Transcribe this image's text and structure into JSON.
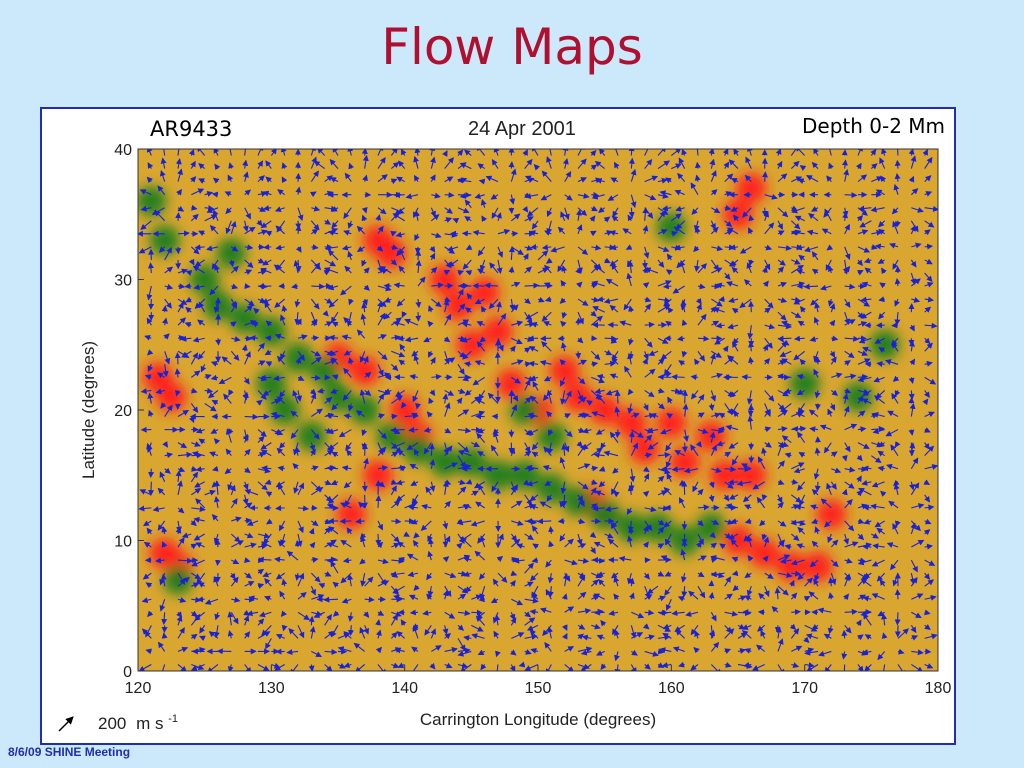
{
  "slide": {
    "title": "Flow Maps",
    "footer": "8/6/09 SHINE Meeting"
  },
  "figure": {
    "region_label": "AR9433",
    "date_label": "24 Apr 2001",
    "depth_label": "Depth 0-2 Mm",
    "scale_value": "200",
    "scale_unit": "m s",
    "scale_exponent": "-1"
  },
  "colors": {
    "background": "#cce8fb",
    "title": "#b01030",
    "frame": "#1f2fb0",
    "field": "#d9a630",
    "flow_vectors": "#1a22d8",
    "positive_region": "#ff2020",
    "negative_region": "#1e7d1e"
  },
  "chart_data": {
    "type": "vector-field",
    "xlabel": "Carrington Longitude (degrees)",
    "ylabel": "Latitude (degrees)",
    "xlim": [
      120,
      180
    ],
    "ylim": [
      0,
      40
    ],
    "xticks": [
      120,
      130,
      140,
      150,
      160,
      170,
      180
    ],
    "yticks": [
      0,
      10,
      20,
      30,
      40
    ],
    "regions": [
      {
        "color": "red",
        "points": [
          [
            121.5,
            22.5
          ],
          [
            122.5,
            21
          ],
          [
            122,
            9
          ],
          [
            123,
            8
          ],
          [
            143,
            30
          ],
          [
            144,
            28
          ],
          [
            146,
            29
          ],
          [
            147,
            26
          ],
          [
            145,
            25
          ],
          [
            148,
            22
          ],
          [
            150,
            20
          ],
          [
            152,
            23
          ],
          [
            153,
            21
          ],
          [
            155,
            20
          ],
          [
            157,
            19
          ],
          [
            158,
            17
          ],
          [
            160,
            19
          ],
          [
            161,
            16
          ],
          [
            163,
            18
          ],
          [
            164,
            15
          ],
          [
            166,
            15
          ],
          [
            165,
            10
          ],
          [
            167,
            9
          ],
          [
            169,
            8
          ],
          [
            171,
            8
          ],
          [
            138,
            33
          ],
          [
            139,
            32
          ],
          [
            135,
            24
          ],
          [
            137,
            23
          ],
          [
            140,
            20
          ],
          [
            141,
            18
          ],
          [
            138,
            15
          ],
          [
            136,
            12
          ],
          [
            154,
            13
          ],
          [
            155,
            12
          ],
          [
            172,
            12
          ],
          [
            165,
            35
          ],
          [
            166,
            37
          ]
        ]
      },
      {
        "color": "green",
        "points": [
          [
            128,
            27
          ],
          [
            130,
            26
          ],
          [
            132,
            24
          ],
          [
            134,
            23
          ],
          [
            135,
            21
          ],
          [
            137,
            20
          ],
          [
            139,
            18
          ],
          [
            141,
            17
          ],
          [
            143,
            16
          ],
          [
            145,
            16
          ],
          [
            147,
            15
          ],
          [
            149,
            15
          ],
          [
            151,
            14
          ],
          [
            153,
            13
          ],
          [
            155,
            12
          ],
          [
            157,
            11
          ],
          [
            159,
            11
          ],
          [
            161,
            10
          ],
          [
            163,
            11
          ],
          [
            130,
            22
          ],
          [
            131,
            20
          ],
          [
            133,
            18
          ],
          [
            125,
            30
          ],
          [
            126,
            28
          ],
          [
            127,
            32
          ],
          [
            122,
            33
          ],
          [
            121,
            36
          ],
          [
            149,
            20
          ],
          [
            151,
            18
          ],
          [
            123,
            7
          ],
          [
            160,
            34
          ],
          [
            170,
            22
          ],
          [
            174,
            21
          ],
          [
            176,
            25
          ]
        ]
      }
    ],
    "vector_grid": {
      "lon_step": 2,
      "lat_step": 2
    },
    "scale_reference_ms": 200
  }
}
